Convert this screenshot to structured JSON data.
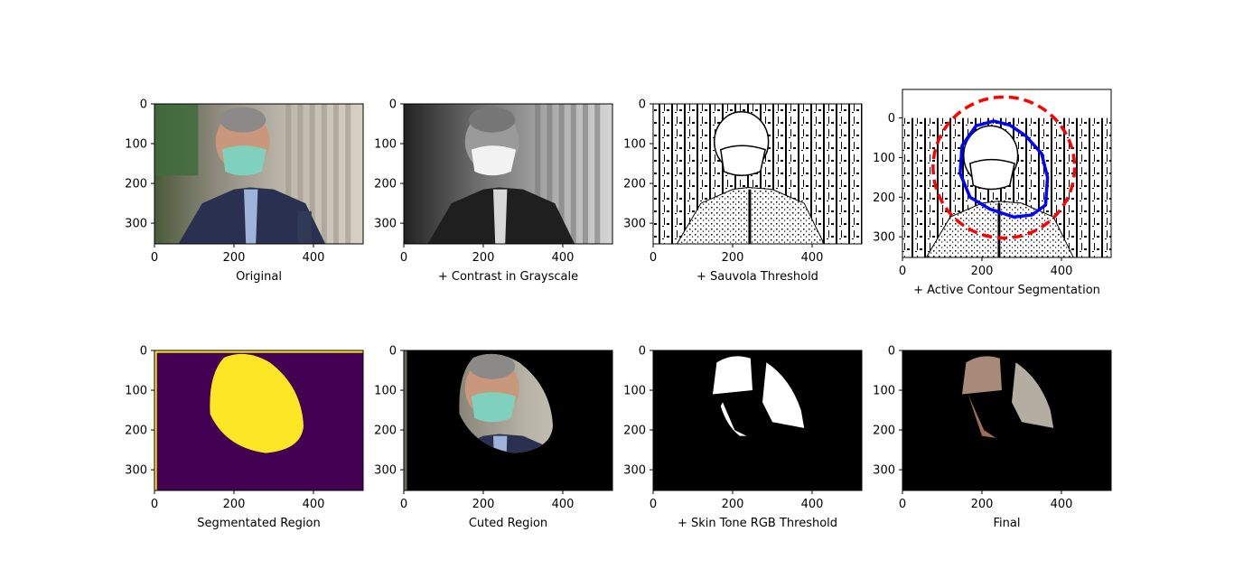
{
  "chart_data": [
    {
      "type": "image",
      "title": "Original",
      "xticks": [
        0,
        200,
        400
      ],
      "yticks": [
        0,
        100,
        200,
        300
      ],
      "xlim": [
        0,
        525
      ],
      "ylim": [
        352,
        0
      ],
      "content": "photo-color"
    },
    {
      "type": "image",
      "title": "+ Contrast in Grayscale",
      "xticks": [
        0,
        200,
        400
      ],
      "yticks": [
        0,
        100,
        200,
        300
      ],
      "xlim": [
        0,
        525
      ],
      "ylim": [
        352,
        0
      ],
      "content": "photo-grayscale"
    },
    {
      "type": "image",
      "title": "+ Sauvola Threshold",
      "xticks": [
        0,
        200,
        400
      ],
      "yticks": [
        0,
        100,
        200,
        300
      ],
      "xlim": [
        0,
        525
      ],
      "ylim": [
        352,
        0
      ],
      "content": "binary-threshold"
    },
    {
      "type": "image",
      "title": "+ Active Contour Segmentation",
      "xticks": [
        0,
        200,
        400
      ],
      "yticks": [
        0,
        100,
        200,
        300
      ],
      "xlim": [
        0,
        525
      ],
      "ylim": [
        352,
        -72
      ],
      "content": "binary-threshold",
      "overlays": [
        {
          "kind": "initial-contour-circle",
          "style": "dashed",
          "color": "#ff0000",
          "center": [
            255,
            125
          ],
          "radius": 178
        },
        {
          "kind": "active-contour",
          "style": "solid",
          "color": "#0000ff",
          "points": [
            [
              185,
              20
            ],
            [
              230,
              8
            ],
            [
              270,
              18
            ],
            [
              310,
              45
            ],
            [
              350,
              90
            ],
            [
              365,
              150
            ],
            [
              360,
              220
            ],
            [
              325,
              245
            ],
            [
              280,
              250
            ],
            [
              220,
              230
            ],
            [
              170,
              200
            ],
            [
              145,
              140
            ],
            [
              150,
              70
            ]
          ]
        }
      ]
    },
    {
      "type": "image",
      "title": "Segmentated Region",
      "xticks": [
        0,
        200,
        400
      ],
      "yticks": [
        0,
        100,
        200,
        300
      ],
      "xlim": [
        0,
        525
      ],
      "ylim": [
        352,
        0
      ],
      "content": "mask",
      "colors": {
        "background": "#440154",
        "region": "#fde725"
      }
    },
    {
      "type": "image",
      "title": "Cuted Region",
      "xticks": [
        0,
        200,
        400
      ],
      "yticks": [
        0,
        100,
        200,
        300
      ],
      "xlim": [
        0,
        525
      ],
      "ylim": [
        352,
        0
      ],
      "content": "masked-photo"
    },
    {
      "type": "image",
      "title": "+ Skin Tone RGB Threshold",
      "xticks": [
        0,
        200,
        400
      ],
      "yticks": [
        0,
        100,
        200,
        300
      ],
      "xlim": [
        0,
        525
      ],
      "ylim": [
        352,
        0
      ],
      "content": "binary-skin-mask"
    },
    {
      "type": "image",
      "title": "Final",
      "xticks": [
        0,
        200,
        400
      ],
      "yticks": [
        0,
        100,
        200,
        300
      ],
      "xlim": [
        0,
        525
      ],
      "ylim": [
        352,
        0
      ],
      "content": "final-result"
    }
  ]
}
